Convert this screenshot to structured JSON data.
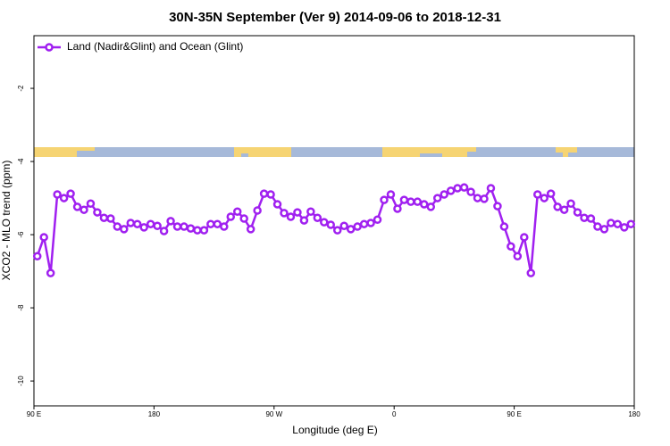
{
  "chart_data": {
    "type": "line",
    "title": "30N-35N September (Ver 9)   2014-09-06 to 2018-12-31",
    "xlabel": "Longitude (deg E)",
    "ylabel": "XCO2 - MLO trend (ppm)",
    "xlim": [
      90,
      540
    ],
    "ylim": [
      -10.68,
      -0.56
    ],
    "xticks": [
      {
        "value": 90,
        "label": "90 E"
      },
      180,
      {
        "value": 270,
        "label": "90 W"
      },
      {
        "value": 360,
        "label": "0"
      },
      {
        "value": 450,
        "label": "90 E"
      },
      {
        "value": 540,
        "label": "180"
      }
    ],
    "yticks": [
      -2,
      -4,
      -6,
      -8,
      -10
    ],
    "legend": "upper left",
    "x": [
      92.5,
      97.5,
      102.5,
      107.5,
      112.5,
      117.5,
      122.5,
      127.5,
      132.5,
      137.5,
      142.5,
      147.5,
      152.5,
      157.5,
      162.5,
      167.5,
      172.5,
      177.5,
      182.5,
      187.5,
      192.5,
      197.5,
      202.5,
      207.5,
      212.5,
      217.5,
      222.5,
      227.5,
      232.5,
      237.5,
      242.5,
      247.5,
      252.5,
      257.5,
      262.5,
      267.5,
      272.5,
      277.5,
      282.5,
      287.5,
      292.5,
      297.5,
      302.5,
      307.5,
      312.5,
      317.5,
      322.5,
      327.5,
      332.5,
      337.5,
      342.5,
      347.5,
      352.5,
      357.5,
      362.5,
      367.5,
      372.5,
      377.5,
      382.5,
      387.5,
      392.5,
      397.5,
      402.5,
      407.5,
      412.5,
      417.5,
      422.5,
      427.5,
      432.5,
      437.5,
      442.5,
      447.5,
      452.5,
      457.5,
      462.5,
      467.5,
      472.5,
      477.5,
      482.5,
      487.5,
      492.5,
      497.5,
      502.5,
      507.5,
      512.5,
      517.5,
      522.5,
      527.5,
      532.5,
      537.5
    ],
    "series": [
      {
        "name": "Land (Nadir&Glint) and Ocean (Glint)",
        "color": "#a020f0",
        "values": [
          -6.59,
          -6.07,
          -7.05,
          -4.9,
          -5.0,
          -4.88,
          -5.24,
          -5.32,
          -5.15,
          -5.39,
          -5.54,
          -5.56,
          -5.78,
          -5.85,
          -5.68,
          -5.71,
          -5.8,
          -5.71,
          -5.76,
          -5.9,
          -5.63,
          -5.78,
          -5.78,
          -5.83,
          -5.88,
          -5.88,
          -5.71,
          -5.71,
          -5.78,
          -5.51,
          -5.37,
          -5.56,
          -5.85,
          -5.34,
          -4.88,
          -4.9,
          -5.17,
          -5.41,
          -5.51,
          -5.39,
          -5.61,
          -5.37,
          -5.54,
          -5.66,
          -5.73,
          -5.88,
          -5.76,
          -5.85,
          -5.78,
          -5.71,
          -5.68,
          -5.59,
          -5.05,
          -4.9,
          -5.29,
          -5.05,
          -5.1,
          -5.1,
          -5.17,
          -5.24,
          -5.0,
          -4.9,
          -4.8,
          -4.73,
          -4.71,
          -4.83,
          -5.0,
          -5.02,
          -4.73,
          -5.22,
          -5.78,
          -6.32,
          -6.59,
          -6.07,
          -7.05,
          -4.9,
          -5.0,
          -4.88,
          -5.24,
          -5.32,
          -5.15,
          -5.39,
          -5.54,
          -5.56,
          -5.78,
          -5.85,
          -5.68,
          -5.71,
          -5.8,
          -5.71
        ]
      }
    ]
  }
}
